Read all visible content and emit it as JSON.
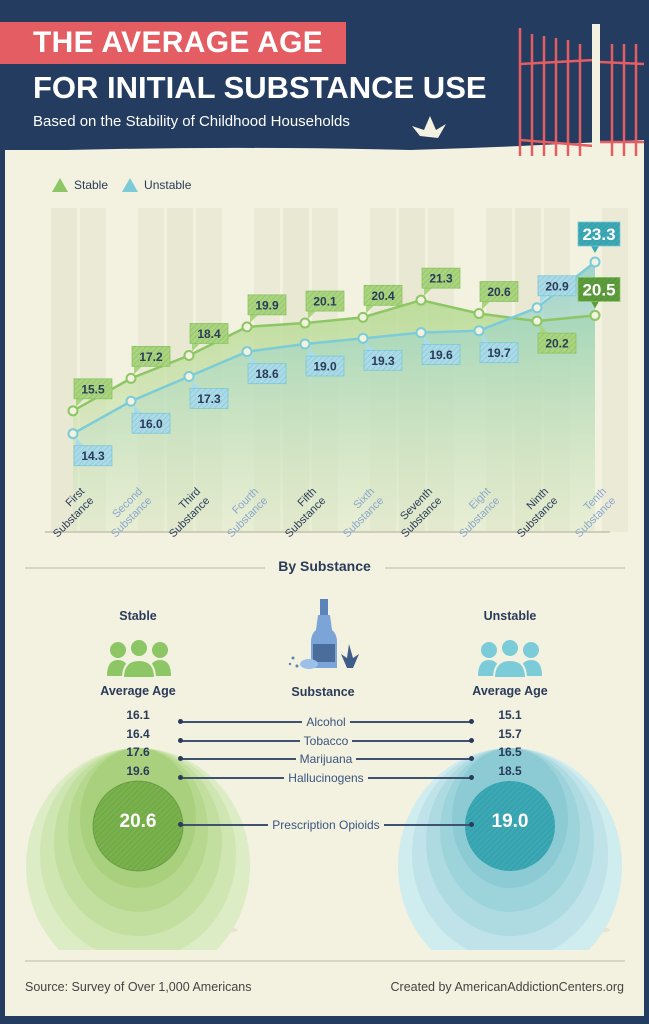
{
  "header": {
    "title_line1": "THE AVERAGE AGE",
    "title_line2": "FOR INITIAL SUBSTANCE USE",
    "subtitle": "Based on the Stability of Childhood Households"
  },
  "chart_data": {
    "type": "line",
    "categories": [
      [
        "First",
        "Substance"
      ],
      [
        "Second",
        "Substance"
      ],
      [
        "Third",
        "Substance"
      ],
      [
        "Fourth",
        "Substance"
      ],
      [
        "Fifth",
        "Substance"
      ],
      [
        "Sixth",
        "Substance"
      ],
      [
        "Seventh",
        "Substance"
      ],
      [
        "Eight",
        "Substance"
      ],
      [
        "Ninth",
        "Substance"
      ],
      [
        "Tenth",
        "Substance"
      ]
    ],
    "series": [
      {
        "name": "Stable",
        "color": "#8cc665",
        "values": [
          15.5,
          17.2,
          18.4,
          19.9,
          20.1,
          20.4,
          21.3,
          20.6,
          20.2,
          20.5
        ]
      },
      {
        "name": "Unstable",
        "color": "#7ccbd8",
        "values": [
          14.3,
          16.0,
          17.3,
          18.6,
          19.0,
          19.3,
          19.6,
          19.7,
          20.9,
          23.3
        ]
      }
    ],
    "ylim": [
      9.2,
      26.0
    ],
    "grid": false,
    "legend": "top-left",
    "data_labels": true
  },
  "by_substance": {
    "title": "By Substance",
    "stable_heading": "Stable",
    "unstable_heading": "Unstable",
    "avg_age_label": "Average Age",
    "substance_label": "Substance",
    "rows": [
      {
        "substance": "Alcohol",
        "stable": "16.1",
        "unstable": "15.1"
      },
      {
        "substance": "Tobacco",
        "stable": "16.4",
        "unstable": "15.7"
      },
      {
        "substance": "Marijuana",
        "stable": "17.6",
        "unstable": "16.5"
      },
      {
        "substance": "Hallucinogens",
        "stable": "19.6",
        "unstable": "18.5"
      },
      {
        "substance": "Prescription Opioids",
        "stable": "20.6",
        "unstable": "19.0"
      }
    ],
    "colors": {
      "stable": "#8cc665",
      "unstable": "#7ccbd8"
    }
  },
  "footer": {
    "source": "Source: Survey of Over 1,000 Americans",
    "credit": "Created by AmericanAddictionCenters.org"
  }
}
